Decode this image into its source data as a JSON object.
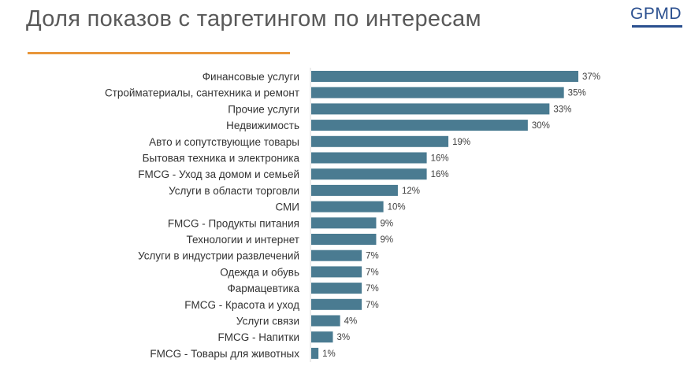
{
  "header": {
    "title": "Доля показов с таргетингом по интересам",
    "logo": "GPMD"
  },
  "colors": {
    "bar": "#4a7b91",
    "accent": "#e8963a",
    "logo": "#2a4f8f"
  },
  "chart_data": {
    "type": "bar",
    "orientation": "horizontal",
    "title": "Доля показов с таргетингом по интересам",
    "xlabel": "",
    "ylabel": "",
    "xlim": [
      0,
      37
    ],
    "grid": false,
    "categories": [
      "Финансовые услуги",
      "Стройматериалы, сантехника и ремонт",
      "Прочие услуги",
      "Недвижимость",
      "Авто и сопутствующие товары",
      "Бытовая техника и электроника",
      "FMCG - Уход за домом и семьей",
      "Услуги в области торговли",
      "СМИ",
      "FMCG - Продукты питания",
      "Технологии и интернет",
      "Услуги в индустрии развлечений",
      "Одежда и обувь",
      "Фармацевтика",
      "FMCG - Красота и уход",
      "Услуги связи",
      "FMCG - Напитки",
      "FMCG - Товары для животных"
    ],
    "values": [
      37,
      35,
      33,
      30,
      19,
      16,
      16,
      12,
      10,
      9,
      9,
      7,
      7,
      7,
      7,
      4,
      3,
      1
    ],
    "labels": [
      "37%",
      "35%",
      "33%",
      "30%",
      "19%",
      "16%",
      "16%",
      "12%",
      "10%",
      "9%",
      "9%",
      "7%",
      "7%",
      "7%",
      "7%",
      "4%",
      "3%",
      "1%"
    ]
  }
}
